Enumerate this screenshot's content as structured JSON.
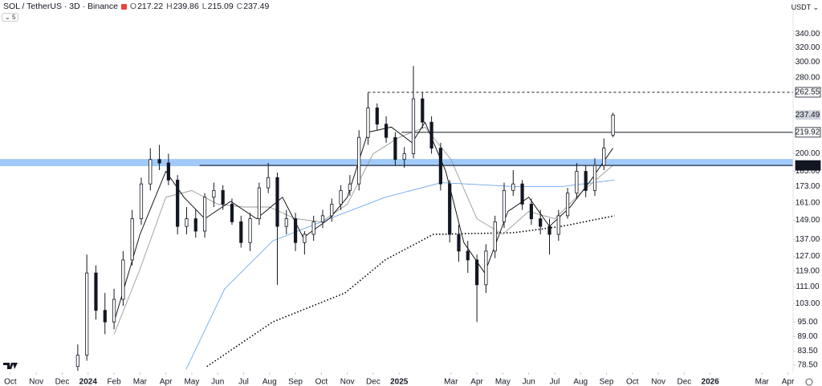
{
  "chart_data": {
    "type": "candlestick",
    "title": "SOL / TetherUS · 3D · Binance",
    "ohlc_letters": [
      "O",
      "H",
      "L",
      "C"
    ],
    "currency": "USDT",
    "indicator_count": 5,
    "y_scale": "log",
    "ylim": [
      76,
      395
    ],
    "yticks": [
      {
        "value": 340,
        "label": "340.00"
      },
      {
        "value": 320,
        "label": "320.00"
      },
      {
        "value": 300,
        "label": "300.00"
      },
      {
        "value": 280,
        "label": "280.00"
      },
      {
        "value": 200,
        "label": "200.00"
      },
      {
        "value": 185,
        "label": "185.00"
      },
      {
        "value": 173,
        "label": "173.00"
      },
      {
        "value": 161,
        "label": "161.00"
      },
      {
        "value": 149,
        "label": "149.00"
      },
      {
        "value": 137,
        "label": "137.00"
      },
      {
        "value": 127,
        "label": "127.00"
      },
      {
        "value": 119,
        "label": "119.00"
      },
      {
        "value": 111,
        "label": "111.00"
      },
      {
        "value": 103,
        "label": "103.00"
      },
      {
        "value": 95,
        "label": "95.00"
      },
      {
        "value": 89,
        "label": "89.00"
      },
      {
        "value": 83.5,
        "label": "83.50"
      },
      {
        "value": 78.5,
        "label": "78.50"
      }
    ],
    "xlim": [
      -0.4,
      30.2
    ],
    "xticks": [
      {
        "value": 0,
        "label": "Oct"
      },
      {
        "value": 1,
        "label": "Nov"
      },
      {
        "value": 2,
        "label": "Dec"
      },
      {
        "value": 3,
        "label": "2024"
      },
      {
        "value": 4,
        "label": "Feb"
      },
      {
        "value": 5,
        "label": "Mar"
      },
      {
        "value": 6,
        "label": "Apr"
      },
      {
        "value": 7,
        "label": "May"
      },
      {
        "value": 8,
        "label": "Jun"
      },
      {
        "value": 9,
        "label": "Jul"
      },
      {
        "value": 10,
        "label": "Aug"
      },
      {
        "value": 11,
        "label": "Sep"
      },
      {
        "value": 12,
        "label": "Oct"
      },
      {
        "value": 13,
        "label": "Nov"
      },
      {
        "value": 14,
        "label": "Dec"
      },
      {
        "value": 15,
        "label": "2025"
      },
      {
        "value": 17,
        "label": "Mar"
      },
      {
        "value": 18,
        "label": "Apr"
      },
      {
        "value": 19,
        "label": "May"
      },
      {
        "value": 20,
        "label": "Jun"
      },
      {
        "value": 21,
        "label": "Jul"
      },
      {
        "value": 22,
        "label": "Aug"
      },
      {
        "value": 23,
        "label": "Sep"
      },
      {
        "value": 24,
        "label": "Oct"
      },
      {
        "value": 25,
        "label": "Nov"
      },
      {
        "value": 26,
        "label": "Dec"
      },
      {
        "value": 27,
        "label": "2026"
      },
      {
        "value": 29,
        "label": "Mar"
      },
      {
        "value": 30,
        "label": "Apr"
      }
    ],
    "x": [
      2.6,
      2.95,
      3.3,
      3.65,
      4.0,
      4.35,
      4.7,
      5.05,
      5.4,
      5.75,
      6.1,
      6.45,
      6.8,
      7.15,
      7.5,
      7.85,
      8.2,
      8.55,
      8.9,
      9.25,
      9.6,
      9.95,
      10.3,
      10.65,
      11.0,
      11.35,
      11.7,
      12.05,
      12.4,
      12.75,
      13.1,
      13.45,
      13.8,
      14.15,
      14.5,
      14.85,
      15.2,
      15.55,
      15.9,
      16.25,
      16.6,
      16.95,
      17.3,
      17.65,
      18.0,
      18.35,
      18.7,
      19.05,
      19.4,
      19.75,
      20.1,
      20.45,
      20.8,
      21.15,
      21.5,
      21.85,
      22.2,
      22.55,
      22.9,
      23.25
    ],
    "open": [
      78,
      82,
      118,
      100,
      95,
      105,
      125,
      150,
      175,
      195,
      192,
      178,
      145,
      150,
      142,
      165,
      170,
      160,
      148,
      135,
      150,
      172,
      180,
      145,
      150,
      135,
      140,
      148,
      152,
      160,
      170,
      175,
      215,
      245,
      228,
      215,
      195,
      200,
      255,
      230,
      205,
      175,
      140,
      130,
      125,
      112,
      130,
      148,
      170,
      175,
      160,
      150,
      145,
      140,
      152,
      168,
      185,
      170,
      190,
      217.22
    ],
    "high": [
      86,
      128,
      122,
      108,
      110,
      130,
      156,
      180,
      205,
      208,
      200,
      182,
      158,
      156,
      168,
      176,
      174,
      164,
      152,
      154,
      176,
      192,
      184,
      156,
      154,
      142,
      152,
      156,
      164,
      174,
      182,
      222,
      262,
      250,
      236,
      220,
      206,
      295,
      262,
      236,
      210,
      178,
      146,
      136,
      128,
      134,
      152,
      176,
      186,
      178,
      164,
      156,
      150,
      156,
      172,
      192,
      190,
      196,
      214,
      239.86
    ],
    "low": [
      76.5,
      80,
      96,
      90,
      92,
      102,
      122,
      146,
      170,
      186,
      174,
      140,
      140,
      138,
      138,
      158,
      156,
      146,
      132,
      130,
      146,
      168,
      112,
      140,
      130,
      128,
      136,
      144,
      148,
      156,
      166,
      170,
      208,
      222,
      210,
      190,
      188,
      196,
      224,
      200,
      170,
      135,
      124,
      118,
      95,
      108,
      126,
      144,
      166,
      156,
      146,
      140,
      128,
      136,
      150,
      164,
      165,
      166,
      186,
      215.09
    ],
    "close": [
      82,
      118,
      100,
      95,
      105,
      125,
      150,
      175,
      195,
      192,
      178,
      145,
      150,
      142,
      165,
      170,
      160,
      148,
      135,
      150,
      172,
      180,
      145,
      150,
      135,
      140,
      148,
      152,
      160,
      170,
      175,
      215,
      245,
      228,
      215,
      195,
      200,
      255,
      230,
      205,
      175,
      140,
      130,
      125,
      112,
      130,
      148,
      170,
      175,
      160,
      150,
      145,
      140,
      152,
      168,
      185,
      170,
      190,
      205,
      237.49
    ],
    "series": [
      {
        "color": "#000000",
        "style": "dotted",
        "x": [
          7.58,
          10.12,
          12.91,
          14.46,
          16.32,
          19.41,
          21.27,
          23.31
        ],
        "values": [
          78,
          95,
          108,
          125,
          140,
          141,
          145,
          152
        ]
      },
      {
        "color": "#6fa8f0",
        "style": "solid",
        "x": [
          6.78,
          8.27,
          10.12,
          12.6,
          14.46,
          16.63,
          19.41,
          21.27,
          23.31
        ],
        "values": [
          77,
          110,
          136,
          152,
          165,
          176,
          173,
          173,
          178
        ]
      },
      {
        "color": "#9a9a9a",
        "style": "solid",
        "x": [
          4.0,
          5.0,
          6.0,
          7.0,
          8.0,
          9.0,
          10.0,
          11.0,
          12.0,
          13.0,
          14.0,
          15.0,
          16.0,
          17.0,
          18.0,
          19.0,
          20.0,
          21.0,
          22.0,
          23.25
        ],
        "values": [
          90,
          120,
          165,
          170,
          160,
          158,
          158,
          150,
          148,
          160,
          200,
          215,
          225,
          195,
          150,
          140,
          155,
          150,
          168,
          190
        ]
      },
      {
        "color": "#000000",
        "style": "solid",
        "x": [
          4.0,
          5.0,
          6.0,
          6.7,
          7.5,
          8.5,
          9.5,
          10.5,
          11.3,
          12.3,
          13.0,
          13.8,
          14.7,
          15.5,
          16.0,
          16.8,
          17.5,
          18.3,
          19.2,
          20.0,
          20.8,
          21.6,
          22.4,
          23.25
        ],
        "values": [
          95,
          140,
          185,
          165,
          150,
          162,
          150,
          165,
          138,
          150,
          165,
          220,
          225,
          210,
          230,
          185,
          135,
          118,
          155,
          165,
          145,
          158,
          178,
          205
        ]
      }
    ],
    "zone": {
      "values": [
        189.3,
        195.4
      ],
      "color": "#90bff9"
    },
    "levels": [
      {
        "value": 262.55,
        "style": "dashed",
        "from": 13.8
      },
      {
        "value": 219.92,
        "style": "solid",
        "from": 15.1
      },
      {
        "value": 189.95,
        "style": "solid",
        "from": 7.3
      }
    ]
  }
}
